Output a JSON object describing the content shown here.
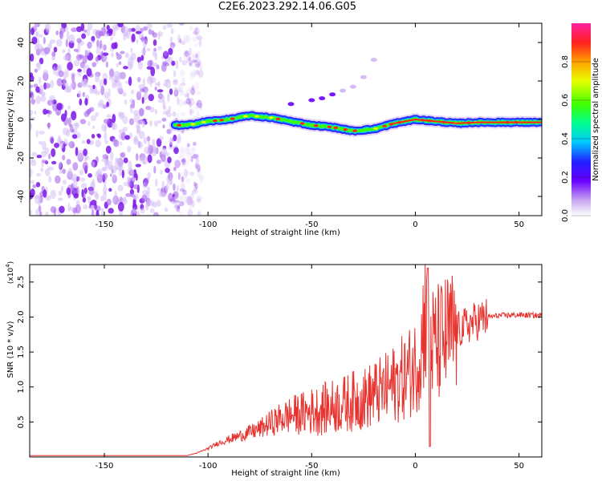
{
  "figure": {
    "title": "C2E6.2023.292.14.06.G05"
  },
  "chart_data": [
    {
      "type": "heatmap",
      "title": "C2E6.2023.292.14.06.G05",
      "xlabel": "Height of straight line (km)",
      "ylabel": "Frequency (Hz)",
      "xlim": [
        -186,
        61
      ],
      "ylim": [
        -50,
        50
      ],
      "xticks": [
        -150,
        -100,
        -50,
        0,
        50
      ],
      "yticks": [
        -40,
        -20,
        0,
        20,
        40
      ],
      "noise_region_x": [
        -186,
        -107
      ],
      "signal_track": {
        "description_x": [
          -116,
          -110,
          -100,
          -90,
          -80,
          -70,
          -60,
          -50,
          -40,
          -30,
          -20,
          -10,
          0,
          10,
          20,
          30,
          40,
          50,
          60
        ],
        "frequency": [
          -3,
          -3,
          -1,
          0,
          2,
          1,
          -1,
          -3,
          -4,
          -6,
          -5,
          -2,
          0,
          -1,
          -2,
          -1.5,
          -1.5,
          -1.5,
          -1.5
        ]
      },
      "secondary_streak": {
        "x": [
          -60,
          -50,
          -45,
          -40,
          -35,
          -30,
          -25,
          -20
        ],
        "frequency": [
          8,
          10,
          11,
          13,
          15,
          17,
          22,
          31
        ]
      },
      "colorbar": {
        "label": "Normalized spectral amplitude",
        "ticks": [
          "0.0",
          "0.2",
          "0.4",
          "0.6",
          "0.8"
        ],
        "range": [
          0,
          1
        ]
      },
      "grid": false
    },
    {
      "type": "line",
      "xlabel": "Height of straight line (km)",
      "ylabel": "SNR (10 * v/v)",
      "y_multiplier_label": "(x10",
      "y_multiplier_exp": "4",
      "y_multiplier_close": ")",
      "xlim": [
        -186,
        61
      ],
      "ylim": [
        0,
        2.75
      ],
      "xticks": [
        -150,
        -100,
        -50,
        0,
        50
      ],
      "yticks": [
        "0.5",
        "1.0",
        "1.5",
        "2.0",
        "2.5"
      ],
      "series": [
        {
          "color": "#e8322e",
          "x": [
            -186,
            -110,
            -105,
            -100,
            -95,
            -90,
            -85,
            -80,
            -75,
            -70,
            -65,
            -60,
            -55,
            -50,
            -45,
            -40,
            -35,
            -30,
            -25,
            -20,
            -15,
            -10,
            -5,
            0,
            3,
            5,
            6,
            7,
            8,
            10,
            15,
            20,
            25,
            30,
            35,
            40,
            50,
            61
          ],
          "y": [
            0.02,
            0.02,
            0.06,
            0.12,
            0.2,
            0.25,
            0.3,
            0.35,
            0.4,
            0.48,
            0.55,
            0.6,
            0.62,
            0.65,
            0.68,
            0.72,
            0.75,
            0.8,
            0.83,
            0.9,
            0.95,
            1.05,
            1.15,
            1.3,
            1.6,
            2.2,
            2.5,
            1.9,
            1.6,
            1.6,
            1.7,
            1.8,
            1.88,
            1.95,
            2.0,
            2.02,
            2.03,
            2.02
          ]
        }
      ],
      "grid": false
    }
  ]
}
